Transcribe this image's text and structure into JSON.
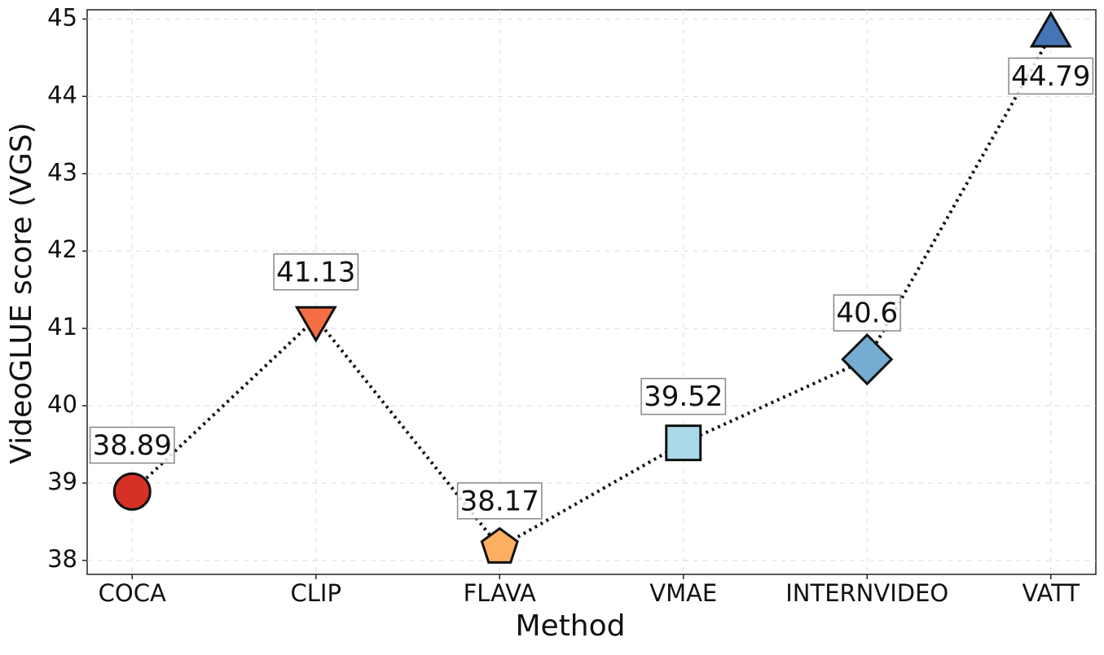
{
  "chart_data": {
    "type": "line",
    "x_label": "Method",
    "y_label": "VideoGLUE score (VGS)",
    "categories": [
      "COCA",
      "CLIP",
      "FLAVA",
      "VMAE",
      "INTERNVIDEO",
      "VATT"
    ],
    "values": [
      38.89,
      41.13,
      38.17,
      39.52,
      40.6,
      44.79
    ],
    "colors": [
      "#d73027",
      "#f46d43",
      "#fdae61",
      "#abd9e9",
      "#74add1",
      "#4575b4"
    ],
    "markers": [
      "circle",
      "triangle-down",
      "pentagon",
      "square",
      "diamond",
      "triangle-up"
    ],
    "line_color": "#111111",
    "ylim": [
      37.82,
      45.12
    ],
    "yticks": [
      38,
      39,
      40,
      41,
      42,
      43,
      44,
      45
    ],
    "grid": true
  }
}
